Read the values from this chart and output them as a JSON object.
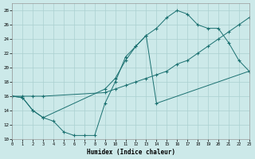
{
  "background_color": "#cce9e9",
  "grid_color": "#aad0d0",
  "line_color": "#1a7070",
  "xlabel": "Humidex (Indice chaleur)",
  "xlim": [
    0,
    23
  ],
  "ylim": [
    10,
    29
  ],
  "xticks": [
    0,
    1,
    2,
    3,
    4,
    5,
    6,
    7,
    8,
    9,
    10,
    11,
    12,
    13,
    14,
    15,
    16,
    17,
    18,
    19,
    20,
    21,
    22,
    23
  ],
  "yticks": [
    10,
    12,
    14,
    16,
    18,
    20,
    22,
    24,
    26,
    28
  ],
  "curve1_x": [
    0,
    1,
    2,
    3,
    9,
    10,
    11,
    12,
    13,
    14,
    15,
    16,
    17,
    18,
    19,
    20,
    21,
    22,
    23
  ],
  "curve1_y": [
    16,
    15.8,
    14,
    13,
    17,
    18.5,
    21,
    23,
    24.5,
    25.5,
    27,
    28,
    27.5,
    26,
    25.5,
    25.5,
    23.5,
    21,
    19.5
  ],
  "curve2_x": [
    0,
    1,
    2,
    3,
    9,
    10,
    11,
    12,
    13,
    14,
    15,
    16,
    17,
    18,
    19,
    20,
    21,
    22,
    23
  ],
  "curve2_y": [
    16,
    16,
    16,
    16,
    16.5,
    17,
    17.5,
    18,
    18.5,
    19,
    19.5,
    20.5,
    21,
    22,
    23,
    24,
    25,
    26,
    27
  ],
  "curve3_x": [
    0,
    1,
    2,
    3,
    4,
    5,
    6,
    7,
    8,
    9,
    10,
    11,
    12,
    13,
    14,
    23
  ],
  "curve3_y": [
    16,
    15.8,
    14,
    13,
    12.5,
    11,
    10.5,
    10.5,
    10.5,
    15,
    18,
    21.5,
    23,
    24.5,
    15,
    19.5
  ]
}
